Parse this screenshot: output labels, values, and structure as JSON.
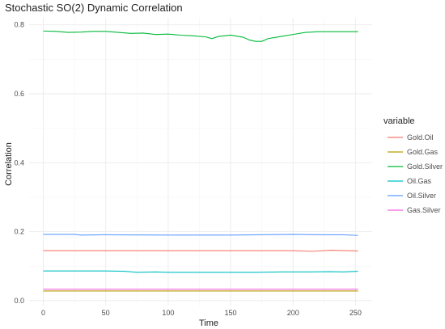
{
  "chart_data": {
    "type": "line",
    "title": "Stochastic SO(2) Dynamic Correlation",
    "xlabel": "Time",
    "ylabel": "Correlation",
    "xlim": [
      0,
      252
    ],
    "ylim": [
      0,
      0.8
    ],
    "x_ticks": [
      0,
      50,
      100,
      150,
      200,
      250
    ],
    "y_ticks": [
      0.0,
      0.2,
      0.4,
      0.6,
      0.8
    ],
    "x_tick_labels": [
      "0",
      "50",
      "100",
      "150",
      "200",
      "250"
    ],
    "y_tick_labels": [
      "0.0",
      "0.2",
      "0.4",
      "0.6",
      "0.8"
    ],
    "grid": true,
    "legend_title": "variable",
    "legend_position": "right",
    "series": [
      {
        "name": "Gold.Oil",
        "color": "#F8766D",
        "points": [
          [
            0,
            0.145
          ],
          [
            50,
            0.145
          ],
          [
            100,
            0.145
          ],
          [
            150,
            0.145
          ],
          [
            200,
            0.145
          ],
          [
            215,
            0.143
          ],
          [
            230,
            0.146
          ],
          [
            252,
            0.144
          ]
        ]
      },
      {
        "name": "Gold.Gas",
        "color": "#B79F00",
        "points": [
          [
            0,
            0.028
          ],
          [
            50,
            0.028
          ],
          [
            100,
            0.028
          ],
          [
            150,
            0.028
          ],
          [
            200,
            0.028
          ],
          [
            252,
            0.028
          ]
        ]
      },
      {
        "name": "Gold.Silver",
        "color": "#00BA38",
        "points": [
          [
            0,
            0.782
          ],
          [
            10,
            0.781
          ],
          [
            20,
            0.778
          ],
          [
            30,
            0.779
          ],
          [
            40,
            0.781
          ],
          [
            50,
            0.781
          ],
          [
            60,
            0.778
          ],
          [
            70,
            0.775
          ],
          [
            80,
            0.776
          ],
          [
            90,
            0.772
          ],
          [
            100,
            0.773
          ],
          [
            110,
            0.77
          ],
          [
            120,
            0.768
          ],
          [
            130,
            0.765
          ],
          [
            135,
            0.76
          ],
          [
            140,
            0.766
          ],
          [
            150,
            0.77
          ],
          [
            160,
            0.764
          ],
          [
            165,
            0.756
          ],
          [
            170,
            0.752
          ],
          [
            175,
            0.752
          ],
          [
            180,
            0.76
          ],
          [
            190,
            0.766
          ],
          [
            200,
            0.772
          ],
          [
            210,
            0.778
          ],
          [
            220,
            0.78
          ],
          [
            230,
            0.78
          ],
          [
            240,
            0.78
          ],
          [
            252,
            0.78
          ]
        ]
      },
      {
        "name": "Oil.Gas",
        "color": "#00BFC4",
        "points": [
          [
            0,
            0.086
          ],
          [
            25,
            0.086
          ],
          [
            50,
            0.086
          ],
          [
            65,
            0.085
          ],
          [
            75,
            0.082
          ],
          [
            90,
            0.083
          ],
          [
            100,
            0.082
          ],
          [
            120,
            0.082
          ],
          [
            150,
            0.082
          ],
          [
            170,
            0.082
          ],
          [
            190,
            0.083
          ],
          [
            210,
            0.083
          ],
          [
            230,
            0.084
          ],
          [
            240,
            0.083
          ],
          [
            252,
            0.085
          ]
        ]
      },
      {
        "name": "Oil.Silver",
        "color": "#619CFF",
        "points": [
          [
            0,
            0.192
          ],
          [
            25,
            0.192
          ],
          [
            30,
            0.19
          ],
          [
            50,
            0.191
          ],
          [
            100,
            0.19
          ],
          [
            150,
            0.19
          ],
          [
            200,
            0.192
          ],
          [
            225,
            0.191
          ],
          [
            240,
            0.191
          ],
          [
            252,
            0.189
          ]
        ]
      },
      {
        "name": "Gas.Silver",
        "color": "#F564E3",
        "points": [
          [
            0,
            0.033
          ],
          [
            50,
            0.033
          ],
          [
            100,
            0.033
          ],
          [
            150,
            0.033
          ],
          [
            200,
            0.033
          ],
          [
            252,
            0.033
          ]
        ]
      }
    ]
  }
}
